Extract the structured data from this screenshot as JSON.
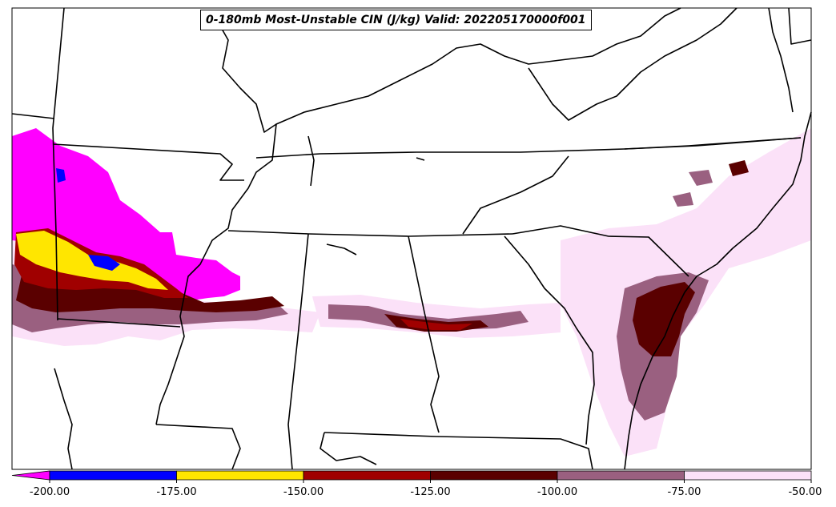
{
  "title": "0-180mb Most-Unstable CIN (J/kg) Valid: 202205170000f001",
  "colorbar": {
    "ticks": [
      "-200.00",
      "-175.00",
      "-150.00",
      "-125.00",
      "-100.00",
      "-75.00",
      "-50.00"
    ],
    "bins": [
      {
        "from": -250,
        "to": -200,
        "color": "#ff00ff"
      },
      {
        "from": -200,
        "to": -175,
        "color": "#0000ff"
      },
      {
        "from": -175,
        "to": -150,
        "color": "#ffe600"
      },
      {
        "from": -150,
        "to": -125,
        "color": "#a00000"
      },
      {
        "from": -125,
        "to": -100,
        "color": "#5a0000"
      },
      {
        "from": -100,
        "to": -75,
        "color": "#9a6080"
      },
      {
        "from": -75,
        "to": -50,
        "color": "#fbe1f8"
      }
    ]
  }
}
